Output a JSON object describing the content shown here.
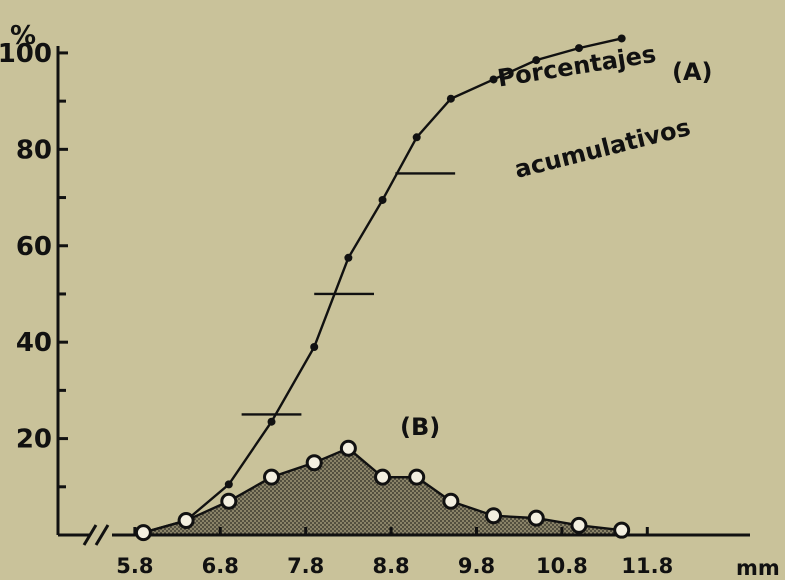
{
  "chart_data": {
    "type": "line",
    "ylabel": "%",
    "xunit": "mm",
    "xlim": [
      4.9,
      12.3
    ],
    "ylim": [
      0,
      106
    ],
    "categories": [
      "5.8",
      "6.8",
      "7.8",
      "8.8",
      "9.8",
      "10.8",
      "11.8"
    ],
    "x_ticks": [
      5.8,
      6.8,
      7.8,
      8.8,
      9.8,
      10.8,
      11.8
    ],
    "y_ticks": [
      20,
      40,
      60,
      80,
      100
    ],
    "series": [
      {
        "label": "(A)",
        "annotation_line1": "·Porcentajes",
        "annotation_line2": "acumulativos",
        "x": [
          5.9,
          6.4,
          6.9,
          7.4,
          7.9,
          8.3,
          8.7,
          9.1,
          9.5,
          10.0,
          10.5,
          11.0,
          11.5
        ],
        "values": [
          0.5,
          3,
          10.5,
          23.5,
          39,
          57.5,
          69.5,
          82.5,
          90.5,
          94.5,
          98.5,
          101,
          103
        ]
      },
      {
        "label": "(B)",
        "x": [
          5.9,
          6.4,
          6.9,
          7.4,
          7.9,
          8.3,
          8.7,
          9.1,
          9.5,
          10.0,
          10.5,
          11.0,
          11.5
        ],
        "values": [
          0.5,
          3,
          7,
          12,
          15,
          18,
          12,
          12,
          7,
          4,
          3.5,
          2,
          1
        ],
        "fill": "stippled"
      }
    ],
    "hlines": [
      {
        "y": 25,
        "x1": 7.05,
        "x2": 7.75
      },
      {
        "y": 50,
        "x1": 7.9,
        "x2": 8.6
      },
      {
        "y": 75,
        "x1": 8.85,
        "x2": 9.55
      }
    ],
    "grid": false,
    "colors": {
      "ink": "#111111",
      "paper": "#c9c29a",
      "marker_fill": "#f3efe0"
    }
  }
}
